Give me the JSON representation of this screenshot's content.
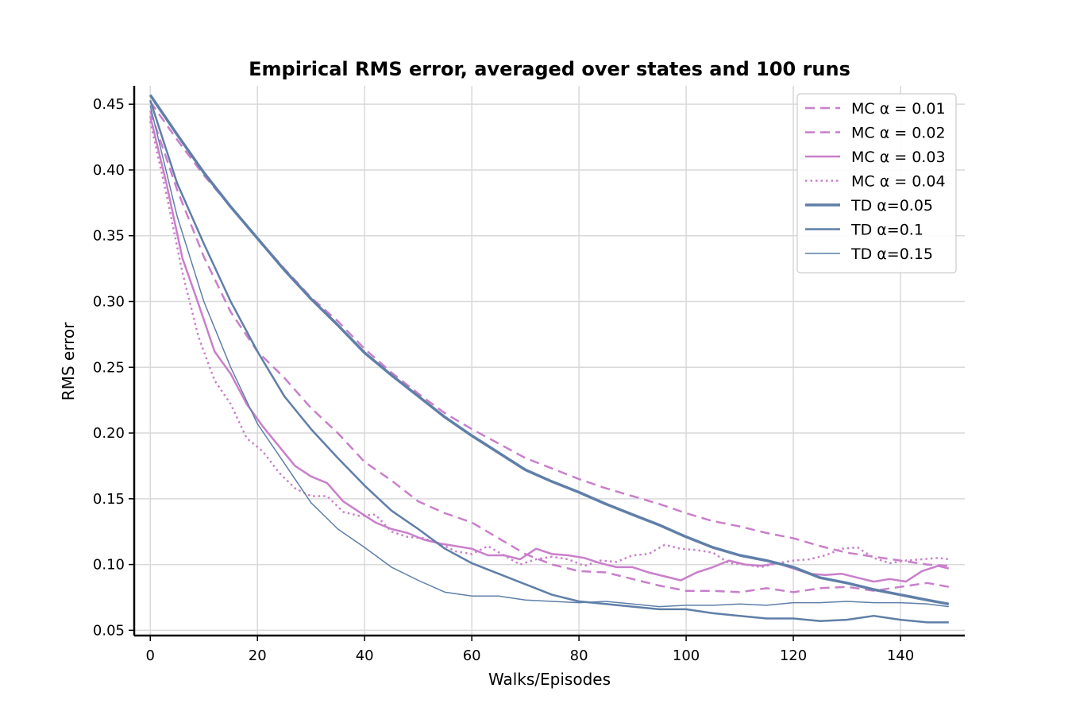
{
  "chart_data": {
    "type": "line",
    "title": "Empirical RMS error, averaged over states and 100 runs",
    "xlabel": "Walks/Episodes",
    "ylabel": "RMS error",
    "xlim": [
      -3,
      152
    ],
    "ylim": [
      0.046,
      0.464
    ],
    "xticks": [
      0,
      20,
      40,
      60,
      80,
      100,
      120,
      140
    ],
    "yticks": [
      0.05,
      0.1,
      0.15,
      0.2,
      0.25,
      0.3,
      0.35,
      0.4,
      0.45
    ],
    "xtick_labels": [
      "0",
      "20",
      "40",
      "60",
      "80",
      "100",
      "120",
      "140"
    ],
    "ytick_labels": [
      "0.05",
      "0.10",
      "0.15",
      "0.20",
      "0.25",
      "0.30",
      "0.35",
      "0.40",
      "0.45"
    ],
    "grid": true,
    "legend_position": "top-right",
    "colors": {
      "mc": "#c97fcb",
      "td": "#5f7fa8"
    },
    "series": [
      {
        "name": "MC α = 0.01",
        "method": "MC",
        "style": "dashed",
        "weight": "normal",
        "color": "#c97fcb",
        "points": [
          [
            0,
            0.452
          ],
          [
            5,
            0.423
          ],
          [
            10,
            0.396
          ],
          [
            15,
            0.372
          ],
          [
            20,
            0.348
          ],
          [
            25,
            0.325
          ],
          [
            30,
            0.303
          ],
          [
            35,
            0.285
          ],
          [
            40,
            0.264
          ],
          [
            45,
            0.246
          ],
          [
            50,
            0.23
          ],
          [
            55,
            0.215
          ],
          [
            60,
            0.203
          ],
          [
            65,
            0.192
          ],
          [
            70,
            0.181
          ],
          [
            75,
            0.173
          ],
          [
            80,
            0.165
          ],
          [
            85,
            0.158
          ],
          [
            90,
            0.152
          ],
          [
            95,
            0.146
          ],
          [
            100,
            0.139
          ],
          [
            105,
            0.133
          ],
          [
            110,
            0.129
          ],
          [
            115,
            0.124
          ],
          [
            120,
            0.12
          ],
          [
            125,
            0.114
          ],
          [
            130,
            0.109
          ],
          [
            135,
            0.106
          ],
          [
            140,
            0.103
          ],
          [
            145,
            0.1
          ],
          [
            149,
            0.099
          ]
        ]
      },
      {
        "name": "MC α = 0.02",
        "method": "MC",
        "style": "dashed",
        "weight": "normal",
        "color": "#c97fcb",
        "points": [
          [
            0,
            0.445
          ],
          [
            5,
            0.385
          ],
          [
            10,
            0.334
          ],
          [
            15,
            0.292
          ],
          [
            20,
            0.262
          ],
          [
            25,
            0.242
          ],
          [
            30,
            0.219
          ],
          [
            35,
            0.2
          ],
          [
            40,
            0.178
          ],
          [
            45,
            0.164
          ],
          [
            50,
            0.148
          ],
          [
            55,
            0.139
          ],
          [
            60,
            0.132
          ],
          [
            65,
            0.12
          ],
          [
            70,
            0.108
          ],
          [
            75,
            0.1
          ],
          [
            80,
            0.095
          ],
          [
            85,
            0.094
          ],
          [
            90,
            0.089
          ],
          [
            95,
            0.084
          ],
          [
            100,
            0.08
          ],
          [
            105,
            0.08
          ],
          [
            110,
            0.079
          ],
          [
            115,
            0.082
          ],
          [
            120,
            0.079
          ],
          [
            125,
            0.082
          ],
          [
            130,
            0.083
          ],
          [
            135,
            0.08
          ],
          [
            140,
            0.083
          ],
          [
            145,
            0.086
          ],
          [
            149,
            0.083
          ]
        ]
      },
      {
        "name": "MC α = 0.03",
        "method": "MC",
        "style": "solid",
        "weight": "normal",
        "color": "#c97fcb",
        "points": [
          [
            0,
            0.441
          ],
          [
            3,
            0.39
          ],
          [
            6,
            0.333
          ],
          [
            9,
            0.298
          ],
          [
            12,
            0.262
          ],
          [
            15,
            0.245
          ],
          [
            18,
            0.222
          ],
          [
            21,
            0.205
          ],
          [
            24,
            0.19
          ],
          [
            27,
            0.175
          ],
          [
            30,
            0.167
          ],
          [
            33,
            0.162
          ],
          [
            36,
            0.148
          ],
          [
            39,
            0.14
          ],
          [
            42,
            0.132
          ],
          [
            45,
            0.127
          ],
          [
            48,
            0.124
          ],
          [
            51,
            0.119
          ],
          [
            54,
            0.116
          ],
          [
            57,
            0.114
          ],
          [
            60,
            0.112
          ],
          [
            63,
            0.107
          ],
          [
            66,
            0.107
          ],
          [
            69,
            0.104
          ],
          [
            72,
            0.112
          ],
          [
            75,
            0.108
          ],
          [
            78,
            0.107
          ],
          [
            81,
            0.105
          ],
          [
            84,
            0.101
          ],
          [
            87,
            0.098
          ],
          [
            90,
            0.098
          ],
          [
            93,
            0.094
          ],
          [
            96,
            0.091
          ],
          [
            99,
            0.088
          ],
          [
            102,
            0.094
          ],
          [
            105,
            0.098
          ],
          [
            108,
            0.103
          ],
          [
            111,
            0.1
          ],
          [
            114,
            0.099
          ],
          [
            117,
            0.101
          ],
          [
            120,
            0.097
          ],
          [
            123,
            0.093
          ],
          [
            126,
            0.092
          ],
          [
            129,
            0.093
          ],
          [
            132,
            0.09
          ],
          [
            135,
            0.087
          ],
          [
            138,
            0.089
          ],
          [
            141,
            0.087
          ],
          [
            144,
            0.095
          ],
          [
            147,
            0.099
          ],
          [
            149,
            0.097
          ]
        ]
      },
      {
        "name": "MC α = 0.04",
        "method": "MC",
        "style": "dotted",
        "weight": "normal",
        "color": "#c97fcb",
        "points": [
          [
            0,
            0.437
          ],
          [
            3,
            0.382
          ],
          [
            6,
            0.322
          ],
          [
            9,
            0.273
          ],
          [
            12,
            0.24
          ],
          [
            15,
            0.222
          ],
          [
            18,
            0.196
          ],
          [
            21,
            0.186
          ],
          [
            24,
            0.17
          ],
          [
            27,
            0.158
          ],
          [
            30,
            0.152
          ],
          [
            33,
            0.152
          ],
          [
            36,
            0.14
          ],
          [
            39,
            0.137
          ],
          [
            42,
            0.138
          ],
          [
            45,
            0.125
          ],
          [
            48,
            0.121
          ],
          [
            51,
            0.12
          ],
          [
            54,
            0.116
          ],
          [
            57,
            0.11
          ],
          [
            60,
            0.108
          ],
          [
            63,
            0.114
          ],
          [
            66,
            0.107
          ],
          [
            69,
            0.1
          ],
          [
            72,
            0.104
          ],
          [
            75,
            0.106
          ],
          [
            78,
            0.104
          ],
          [
            81,
            0.099
          ],
          [
            84,
            0.103
          ],
          [
            87,
            0.102
          ],
          [
            90,
            0.107
          ],
          [
            93,
            0.108
          ],
          [
            96,
            0.115
          ],
          [
            99,
            0.112
          ],
          [
            102,
            0.111
          ],
          [
            105,
            0.109
          ],
          [
            108,
            0.101
          ],
          [
            111,
            0.1
          ],
          [
            114,
            0.098
          ],
          [
            117,
            0.101
          ],
          [
            120,
            0.103
          ],
          [
            123,
            0.104
          ],
          [
            126,
            0.107
          ],
          [
            129,
            0.112
          ],
          [
            132,
            0.113
          ],
          [
            135,
            0.105
          ],
          [
            138,
            0.101
          ],
          [
            141,
            0.103
          ],
          [
            144,
            0.104
          ],
          [
            147,
            0.105
          ],
          [
            149,
            0.104
          ]
        ]
      },
      {
        "name": "TD α=0.05",
        "method": "TD",
        "style": "solid",
        "weight": "bold",
        "color": "#5f7fa8",
        "points": [
          [
            0,
            0.457
          ],
          [
            5,
            0.427
          ],
          [
            10,
            0.398
          ],
          [
            15,
            0.372
          ],
          [
            20,
            0.348
          ],
          [
            25,
            0.324
          ],
          [
            30,
            0.302
          ],
          [
            35,
            0.282
          ],
          [
            40,
            0.261
          ],
          [
            45,
            0.244
          ],
          [
            50,
            0.228
          ],
          [
            55,
            0.212
          ],
          [
            60,
            0.198
          ],
          [
            65,
            0.185
          ],
          [
            70,
            0.172
          ],
          [
            75,
            0.163
          ],
          [
            80,
            0.155
          ],
          [
            85,
            0.146
          ],
          [
            90,
            0.138
          ],
          [
            95,
            0.13
          ],
          [
            100,
            0.121
          ],
          [
            105,
            0.113
          ],
          [
            110,
            0.107
          ],
          [
            115,
            0.103
          ],
          [
            120,
            0.098
          ],
          [
            125,
            0.09
          ],
          [
            130,
            0.086
          ],
          [
            135,
            0.081
          ],
          [
            140,
            0.077
          ],
          [
            145,
            0.073
          ],
          [
            149,
            0.07
          ]
        ]
      },
      {
        "name": "TD α=0.1",
        "method": "TD",
        "style": "solid",
        "weight": "medium",
        "color": "#5f7fa8",
        "points": [
          [
            0,
            0.453
          ],
          [
            5,
            0.39
          ],
          [
            10,
            0.344
          ],
          [
            15,
            0.3
          ],
          [
            20,
            0.262
          ],
          [
            25,
            0.228
          ],
          [
            30,
            0.203
          ],
          [
            35,
            0.181
          ],
          [
            40,
            0.16
          ],
          [
            45,
            0.141
          ],
          [
            50,
            0.127
          ],
          [
            55,
            0.112
          ],
          [
            60,
            0.101
          ],
          [
            65,
            0.093
          ],
          [
            70,
            0.085
          ],
          [
            75,
            0.077
          ],
          [
            80,
            0.072
          ],
          [
            85,
            0.07
          ],
          [
            90,
            0.068
          ],
          [
            95,
            0.066
          ],
          [
            100,
            0.066
          ],
          [
            105,
            0.063
          ],
          [
            110,
            0.061
          ],
          [
            115,
            0.059
          ],
          [
            120,
            0.059
          ],
          [
            125,
            0.057
          ],
          [
            130,
            0.058
          ],
          [
            135,
            0.061
          ],
          [
            140,
            0.058
          ],
          [
            145,
            0.056
          ],
          [
            149,
            0.056
          ]
        ]
      },
      {
        "name": "TD α=0.15",
        "method": "TD",
        "style": "solid",
        "weight": "thin",
        "color": "#5f7fa8",
        "points": [
          [
            0,
            0.449
          ],
          [
            5,
            0.365
          ],
          [
            10,
            0.3
          ],
          [
            15,
            0.25
          ],
          [
            20,
            0.207
          ],
          [
            25,
            0.177
          ],
          [
            30,
            0.147
          ],
          [
            35,
            0.127
          ],
          [
            40,
            0.113
          ],
          [
            45,
            0.098
          ],
          [
            50,
            0.088
          ],
          [
            55,
            0.079
          ],
          [
            60,
            0.076
          ],
          [
            65,
            0.076
          ],
          [
            70,
            0.073
          ],
          [
            75,
            0.072
          ],
          [
            80,
            0.071
          ],
          [
            85,
            0.072
          ],
          [
            90,
            0.07
          ],
          [
            95,
            0.068
          ],
          [
            100,
            0.069
          ],
          [
            105,
            0.069
          ],
          [
            110,
            0.07
          ],
          [
            115,
            0.069
          ],
          [
            120,
            0.071
          ],
          [
            125,
            0.071
          ],
          [
            130,
            0.072
          ],
          [
            135,
            0.071
          ],
          [
            140,
            0.071
          ],
          [
            145,
            0.07
          ],
          [
            149,
            0.068
          ]
        ]
      }
    ]
  }
}
